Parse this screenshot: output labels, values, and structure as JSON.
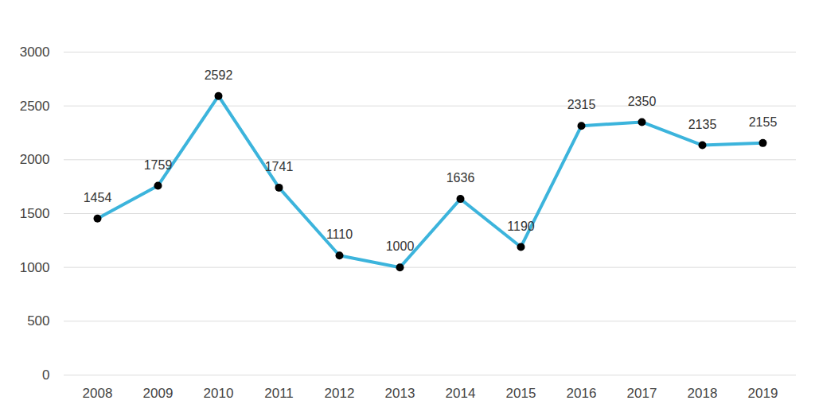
{
  "chart_data": {
    "type": "line",
    "categories": [
      "2008",
      "2009",
      "2010",
      "2011",
      "2012",
      "2013",
      "2014",
      "2015",
      "2016",
      "2017",
      "2018",
      "2019"
    ],
    "values": [
      1454,
      1759,
      2592,
      1741,
      1110,
      1000,
      1636,
      1190,
      2315,
      2350,
      2135,
      2155
    ],
    "color": "#3cb4dc",
    "marker": "circle",
    "ylim": [
      0,
      3000
    ],
    "yticks": [
      0,
      500,
      1000,
      1500,
      2000,
      2500,
      3000
    ],
    "grid": true,
    "data_labels": true
  }
}
